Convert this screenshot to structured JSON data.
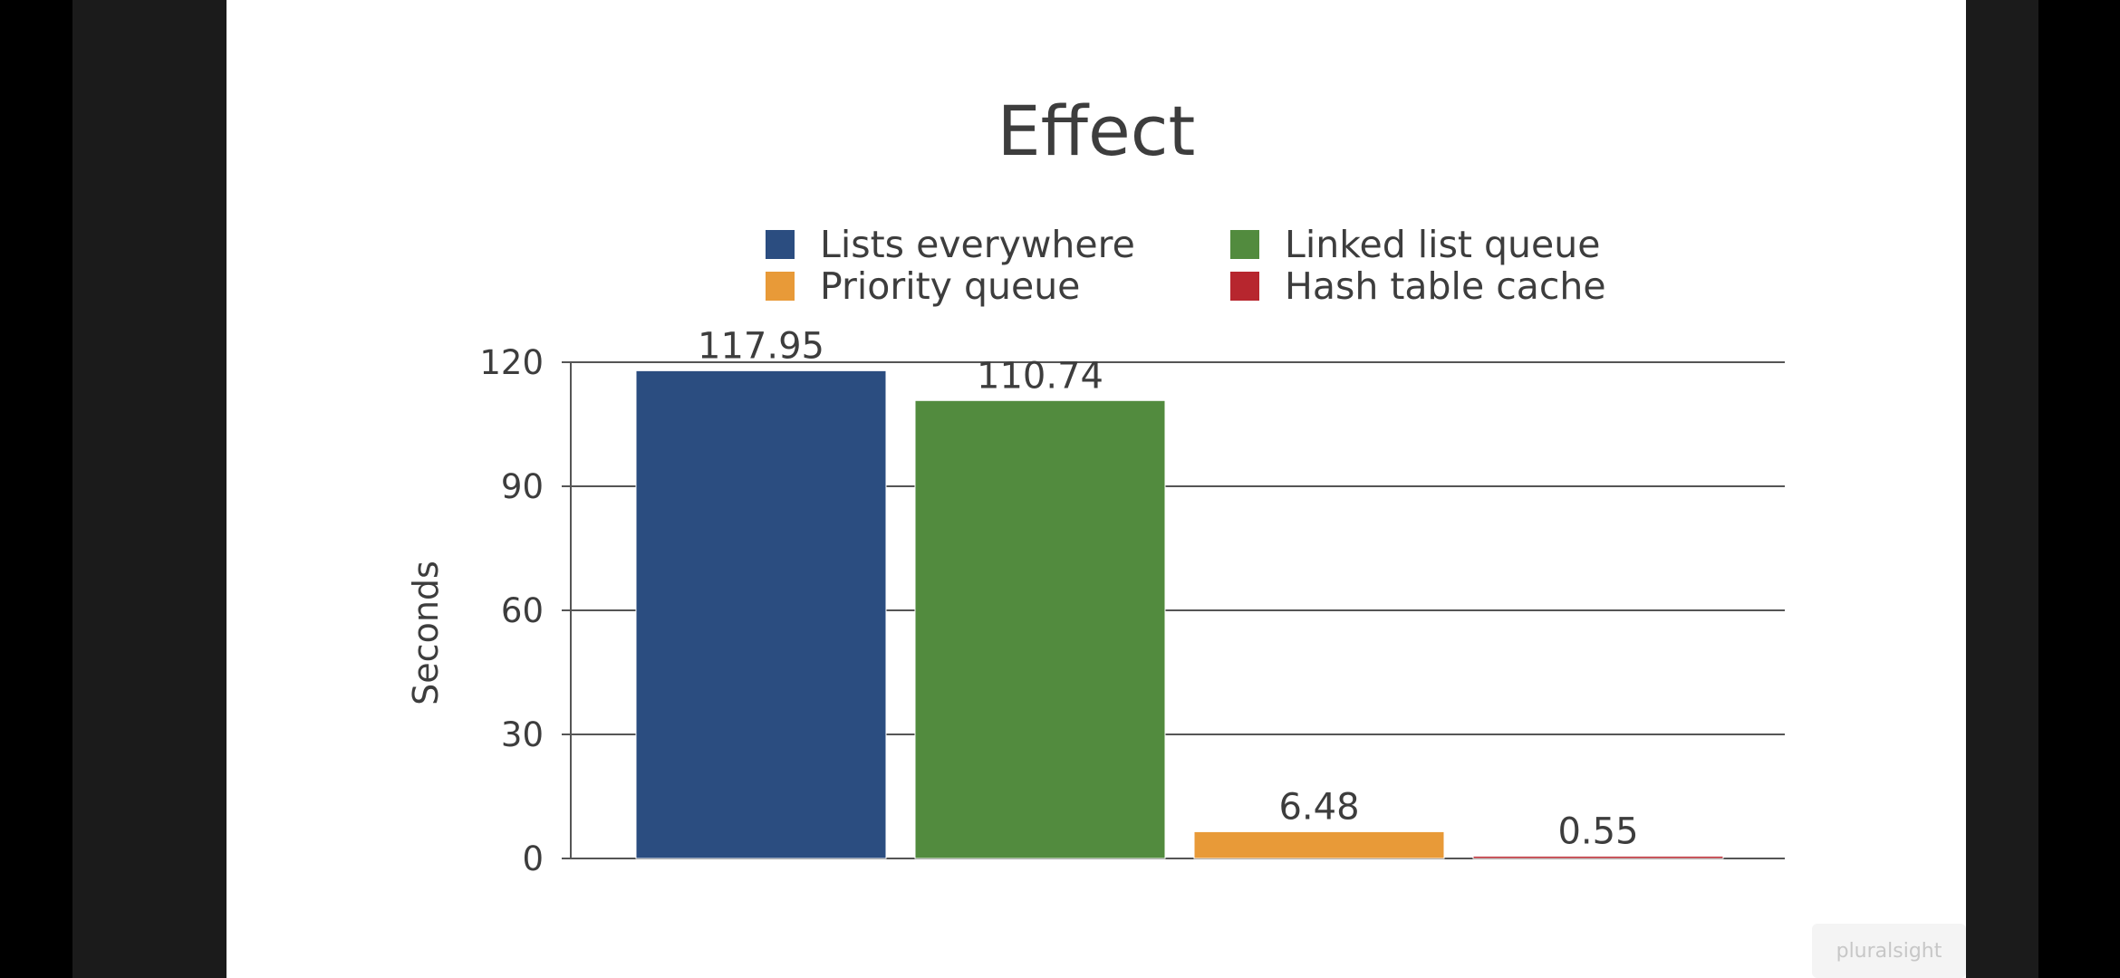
{
  "chart_data": {
    "type": "bar",
    "title": "Effect",
    "ylabel": "Seconds",
    "xlabel": "",
    "ylim": [
      0,
      120
    ],
    "yticks": [
      0,
      30,
      60,
      90,
      120
    ],
    "legend_position": "top-center",
    "grid": true,
    "series": [
      {
        "name": "Lists everywhere",
        "value": 117.95,
        "label": "117.95",
        "color": "#2b4d80"
      },
      {
        "name": "Linked list queue",
        "value": 110.74,
        "label": "110.74",
        "color": "#528b3e"
      },
      {
        "name": "Priority queue",
        "value": 6.48,
        "label": "6.48",
        "color": "#e89a38"
      },
      {
        "name": "Hash table cache",
        "value": 0.55,
        "label": "0.55",
        "color": "#b7262e"
      }
    ]
  },
  "legend": {
    "items": [
      {
        "label": "Lists everywhere",
        "color": "#2b4d80"
      },
      {
        "label": "Linked list queue",
        "color": "#528b3e"
      },
      {
        "label": "Priority queue",
        "color": "#e89a38"
      },
      {
        "label": "Hash table cache",
        "color": "#b7262e"
      }
    ]
  },
  "watermark": "pluralsight"
}
